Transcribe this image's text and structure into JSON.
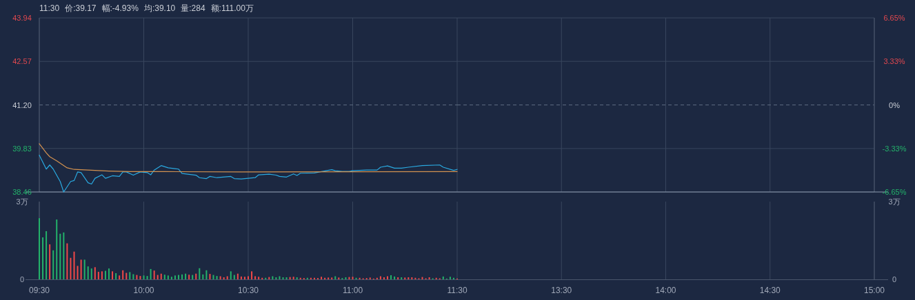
{
  "chart_data": [
    {
      "type": "line",
      "annotations": [
        "11:30",
        "价:39.17",
        "幅:-4.93%",
        "均:39.10",
        "量:284",
        "额:111.00万"
      ],
      "xlim": [
        9.5,
        11.5
      ],
      "xticks": [
        {
          "value": 9.5,
          "label": null
        },
        {
          "value": 10,
          "label": null
        },
        {
          "value": 10.5,
          "label": null
        },
        {
          "value": 11,
          "label": null
        },
        {
          "value": 11.5,
          "label": null
        }
      ],
      "ylim": [
        38.46,
        43.94
      ],
      "yticks": [
        38.46,
        39.83,
        {
          "value": 41.2,
          "label": "41.20"
        },
        42.57,
        43.94
      ],
      "tick_labels": "y",
      "grid": true,
      "ref_lines": [
        {
          "axis": "y",
          "value": 41.2,
          "line_style": "dashed",
          "color": "#5c6b80"
        }
      ],
      "series": [
        {
          "color": "#2aa9e0",
          "x": [
            9.5,
            9.5333,
            9.55,
            9.5667,
            9.6,
            9.6167,
            9.65,
            9.6667,
            9.6833,
            9.7,
            9.7333,
            9.75,
            9.7667,
            9.8,
            9.8167,
            9.85,
            9.8833,
            9.9,
            9.9167,
            9.95,
            9.9833,
            10.0167,
            10.0333,
            10.05,
            10.0833,
            10.1167,
            10.1667,
            10.1833,
            10.25,
            10.2667,
            10.3,
            10.3167,
            10.35,
            10.4167,
            10.4333,
            10.4667,
            10.5333,
            10.55,
            10.6,
            10.6333,
            10.65,
            10.6833,
            10.7167,
            10.7333,
            10.75,
            10.8167,
            10.85,
            10.9,
            10.9167,
            10.95,
            10.9833,
            11,
            11.0667,
            11.1167,
            11.1333,
            11.1667,
            11.2,
            11.2333,
            11.2667,
            11.3333,
            11.4167,
            11.4333,
            11.4833,
            11.5
          ],
          "values": [
            39.62,
            39.18,
            39.31,
            39.18,
            38.79,
            38.46,
            38.79,
            38.82,
            39.09,
            39.07,
            38.75,
            38.71,
            38.89,
            39.0,
            38.89,
            38.97,
            38.95,
            39.09,
            39.09,
            38.99,
            39.09,
            39.07,
            39.0,
            39.15,
            39.29,
            39.22,
            39.18,
            39.04,
            38.99,
            38.91,
            38.88,
            38.95,
            38.91,
            38.95,
            38.88,
            38.87,
            38.91,
            39.0,
            39.02,
            38.99,
            38.95,
            38.93,
            39.03,
            38.98,
            39.05,
            39.06,
            39.1,
            39.16,
            39.13,
            39.11,
            39.11,
            39.13,
            39.15,
            39.15,
            39.24,
            39.28,
            39.21,
            39.21,
            39.24,
            39.29,
            39.31,
            39.24,
            39.14,
            39.17
          ]
        },
        {
          "color": "#d39250",
          "x": [
            9.5,
            9.5333,
            9.55,
            9.5833,
            9.6333,
            9.6667,
            9.7333,
            9.8333,
            9.9333,
            10.1,
            10.4667,
            11.5
          ],
          "values": [
            39.98,
            39.69,
            39.57,
            39.44,
            39.22,
            39.17,
            39.15,
            39.12,
            39.1,
            39.1,
            39.09,
            39.1
          ]
        }
      ]
    },
    {
      "type": "line",
      "xlim": [
        13,
        15
      ],
      "xticks": [
        {
          "value": 13.5,
          "label": null
        },
        {
          "value": 14,
          "label": null
        },
        {
          "value": 14.5,
          "label": null
        },
        {
          "value": 15,
          "label": null
        }
      ],
      "ylim": [
        -6.65,
        6.65
      ],
      "yticks": [
        {
          "value": -6.65,
          "label": "-6.65%"
        },
        {
          "value": -3.33,
          "label": "-3.33%"
        },
        {
          "value": 0,
          "label": "0%"
        },
        {
          "value": 3.33,
          "label": "3.33%"
        },
        {
          "value": 6.65,
          "label": "6.65%"
        }
      ],
      "tick_labels": "y",
      "grid": true,
      "ref_lines": [
        {
          "axis": "y",
          "value": 0,
          "line_style": "dashed",
          "color": "#5c6b80"
        }
      ]
    },
    {
      "type": "bar",
      "xlim": [
        9.5,
        11.5
      ],
      "xticks": [
        {
          "value": 9.5,
          "label": "09:30"
        },
        {
          "value": 10,
          "label": "10:00"
        },
        {
          "value": 10.5,
          "label": "10:30"
        },
        {
          "value": 11,
          "label": "11:00"
        },
        {
          "value": 11.5,
          "label": "11:30"
        }
      ],
      "ylim": [
        0,
        3
      ],
      "yticks": [
        0,
        {
          "value": 3,
          "label": "3万"
        }
      ],
      "grid": "x",
      "x": [
        9.5,
        9.5167,
        9.5333,
        9.55,
        9.5667,
        9.5833,
        9.6,
        9.6167,
        9.6333,
        9.65,
        9.6667,
        9.6833,
        9.7,
        9.7167,
        9.7333,
        9.75,
        9.7667,
        9.7833,
        9.8,
        9.8167,
        9.8333,
        9.85,
        9.8667,
        9.8833,
        9.9,
        9.9167,
        9.9333,
        9.95,
        9.9667,
        9.9833,
        10,
        10.0167,
        10.0333,
        10.05,
        10.0667,
        10.0833,
        10.1,
        10.1167,
        10.1333,
        10.15,
        10.1667,
        10.1833,
        10.2,
        10.2167,
        10.2333,
        10.25,
        10.2667,
        10.2833,
        10.3,
        10.3167,
        10.3333,
        10.35,
        10.3667,
        10.3833,
        10.4,
        10.4167,
        10.4333,
        10.45,
        10.4667,
        10.4833,
        10.5,
        10.5167,
        10.5333,
        10.55,
        10.5667,
        10.5833,
        10.6,
        10.6167,
        10.6333,
        10.65,
        10.6667,
        10.6833,
        10.7,
        10.7167,
        10.7333,
        10.75,
        10.7667,
        10.7833,
        10.8,
        10.8167,
        10.8333,
        10.85,
        10.8667,
        10.8833,
        10.9,
        10.9167,
        10.9333,
        10.95,
        10.9667,
        10.9833,
        11,
        11.0167,
        11.0333,
        11.05,
        11.0667,
        11.0833,
        11.1,
        11.1167,
        11.1333,
        11.15,
        11.1667,
        11.1833,
        11.2,
        11.2167,
        11.2333,
        11.25,
        11.2667,
        11.2833,
        11.3,
        11.3167,
        11.3333,
        11.35,
        11.3667,
        11.3833,
        11.4,
        11.4167,
        11.4333,
        11.45,
        11.4667,
        11.4833,
        11.5
      ],
      "values": [
        2.36,
        1.62,
        1.86,
        1.35,
        1.12,
        2.31,
        1.76,
        1.81,
        1.39,
        0.83,
        1.07,
        0.52,
        0.76,
        0.76,
        0.5,
        0.42,
        0.47,
        0.29,
        0.31,
        0.33,
        0.42,
        0.31,
        0.24,
        0.15,
        0.35,
        0.25,
        0.28,
        0.2,
        0.17,
        0.13,
        0.15,
        0.13,
        0.4,
        0.34,
        0.17,
        0.22,
        0.18,
        0.15,
        0.1,
        0.15,
        0.17,
        0.19,
        0.22,
        0.18,
        0.17,
        0.22,
        0.43,
        0.19,
        0.35,
        0.21,
        0.17,
        0.13,
        0.12,
        0.08,
        0.12,
        0.31,
        0.17,
        0.22,
        0.11,
        0.1,
        0.12,
        0.31,
        0.12,
        0.1,
        0.06,
        0.06,
        0.09,
        0.12,
        0.08,
        0.12,
        0.08,
        0.08,
        0.09,
        0.1,
        0.08,
        0.06,
        0.05,
        0.06,
        0.06,
        0.06,
        0.05,
        0.1,
        0.06,
        0.07,
        0.07,
        0.12,
        0.07,
        0.05,
        0.08,
        0.09,
        0.1,
        0.06,
        0.06,
        0.04,
        0.05,
        0.07,
        0.03,
        0.06,
        0.12,
        0.08,
        0.12,
        0.16,
        0.11,
        0.08,
        0.08,
        0.07,
        0.08,
        0.08,
        0.06,
        0.04,
        0.09,
        0.04,
        0.08,
        0.04,
        0.06,
        0.04,
        0.11,
        0.03,
        0.1,
        0.06,
        0.03
      ],
      "colors": [
        "#23b26a",
        "#23b26a",
        "#23b26a",
        "#f04848",
        "#23b26a",
        "#23b26a",
        "#23b26a",
        "#23b26a",
        "#f04848",
        "#f04848",
        "#f04848",
        "#f04848",
        "#f04848",
        "#23b26a",
        "#23b26a",
        "#23b26a",
        "#f04848",
        "#f04848",
        "#f04848",
        "#23b26a",
        "#23b26a",
        "#f04848",
        "#23b26a",
        "#f04848",
        "#f04848",
        "#f04848",
        "#23b26a",
        "#23b26a",
        "#f04848",
        "#f04848",
        "#23b26a",
        "#23b26a",
        "#23b26a",
        "#f04848",
        "#f04848",
        "#f04848",
        "#23b26a",
        "#23b26a",
        "#23b26a",
        "#23b26a",
        "#23b26a",
        "#23b26a",
        "#23b26a",
        "#f04848",
        "#23b26a",
        "#f04848",
        "#23b26a",
        "#23b26a",
        "#23b26a",
        "#f04848",
        "#23b26a",
        "#23b26a",
        "#f04848",
        "#f04848",
        "#f04848",
        "#23b26a",
        "#23b26a",
        "#f04848",
        "#f04848",
        "#f04848",
        "#f04848",
        "#f04848",
        "#f04848",
        "#f04848",
        "#f04848",
        "#23b26a",
        "#f04848",
        "#23b26a",
        "#23b26a",
        "#23b26a",
        "#23b26a",
        "#23b26a",
        "#f04848",
        "#f04848",
        "#23b26a",
        "#f04848",
        "#f04848",
        "#23b26a",
        "#f04848",
        "#f04848",
        "#f04848",
        "#f04848",
        "#f04848",
        "#f04848",
        "#f04848",
        "#23b26a",
        "#f04848",
        "#23b26a",
        "#23b26a",
        "#f04848",
        "#f04848",
        "#23b26a",
        "#f04848",
        "#f04848",
        "#f04848",
        "#f04848",
        "#f04848",
        "#f04848",
        "#f04848",
        "#f04848",
        "#f04848",
        "#23b26a",
        "#23b26a",
        "#f04848",
        "#23b26a",
        "#f04848",
        "#f04848",
        "#f04848",
        "#f04848",
        "#f04848",
        "#f04848",
        "#f04848",
        "#f04848",
        "#23b26a",
        "#f04848",
        "#f04848",
        "#23b26a",
        "#23b26a",
        "#23b26a",
        "#23b26a",
        "#f04848"
      ]
    },
    {
      "type": "bar",
      "xlim": [
        13,
        15
      ],
      "xticks": [
        {
          "value": 13.5,
          "label": "13:30"
        },
        {
          "value": 14,
          "label": "14:00"
        },
        {
          "value": 14.5,
          "label": "14:30"
        },
        {
          "value": 15,
          "label": "15:00"
        }
      ],
      "ylim": [
        0,
        3
      ],
      "yticks": [
        0,
        {
          "value": 3,
          "label": "3万"
        }
      ],
      "grid": "x"
    }
  ]
}
